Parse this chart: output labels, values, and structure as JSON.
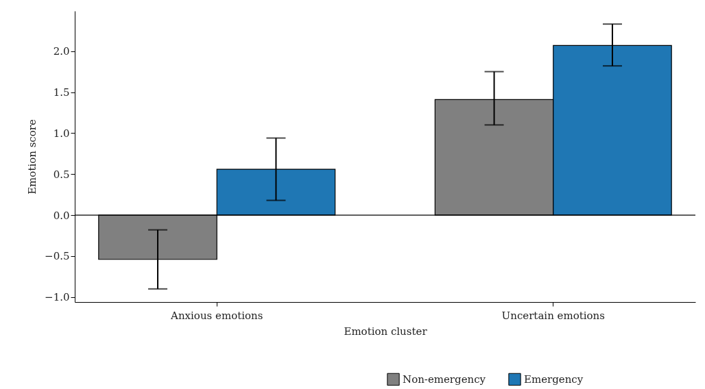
{
  "chart_data": {
    "type": "bar",
    "xlabel": "Emotion cluster",
    "ylabel": "Emotion score",
    "categories": [
      "Anxious emotions",
      "Uncertain emotions"
    ],
    "series": [
      {
        "name": "Non-emergency",
        "color": "#808080",
        "values": [
          -0.54,
          1.41
        ],
        "errors": [
          [
            -0.9,
            -0.18
          ],
          [
            1.1,
            1.75
          ]
        ]
      },
      {
        "name": "Emergency",
        "color": "#1f77b4",
        "values": [
          0.56,
          2.07
        ],
        "errors": [
          [
            0.18,
            0.94
          ],
          [
            1.82,
            2.33
          ]
        ]
      }
    ],
    "ylim": [
      -1.06,
      2.49
    ],
    "yticks": [
      {
        "value": -1,
        "label": "−1.0"
      },
      {
        "value": -0.5,
        "label": "−0.5"
      },
      {
        "value": 0,
        "label": "0.0"
      },
      {
        "value": 0.5,
        "label": "0.5"
      },
      {
        "value": 1,
        "label": "1.0"
      },
      {
        "value": 1.5,
        "label": "1.5"
      },
      {
        "value": 2,
        "label": "2.0"
      }
    ],
    "ref_lines": [
      {
        "axis": "y",
        "value": 0,
        "color": "#000000"
      }
    ],
    "grid": false,
    "legend": "bottom right"
  }
}
